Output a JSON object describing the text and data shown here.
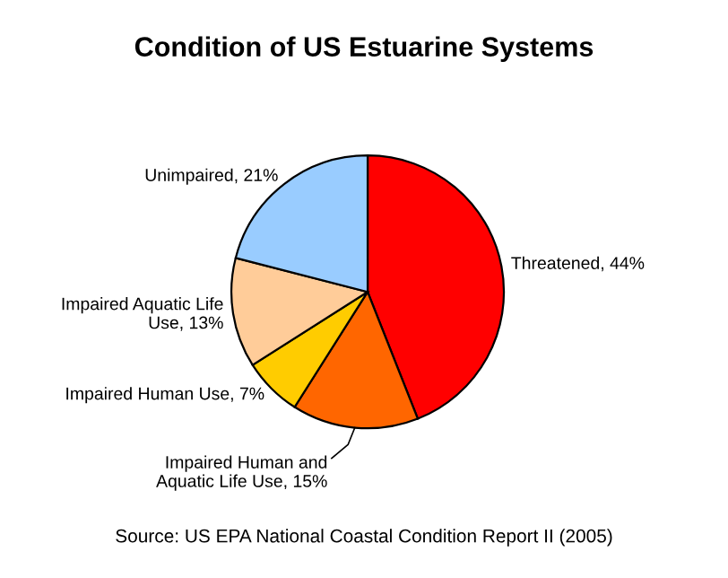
{
  "chart_data": {
    "type": "pie",
    "title": "Condition of US Estuarine Systems",
    "categories": [
      "Threatened",
      "Impaired Human and\nAquatic Life Use",
      "Impaired Human Use",
      "Impaired Aquatic Life\nUse",
      "Unimpaired"
    ],
    "values": [
      44,
      15,
      7,
      13,
      21
    ],
    "colors": [
      "#ff0000",
      "#ff6600",
      "#ffcc00",
      "#ffcc99",
      "#99ccff"
    ],
    "value_labels": [
      "44%",
      "15%",
      "7%",
      "13%",
      "21%"
    ],
    "annotations": [
      "Source: US EPA National Coastal Condition Report II (2005)"
    ]
  }
}
